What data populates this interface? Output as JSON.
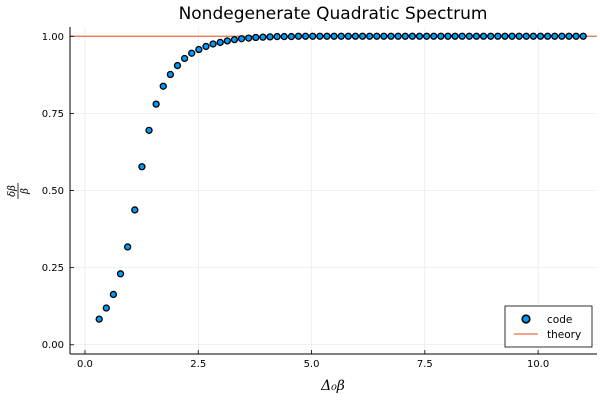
{
  "chart_data": {
    "type": "scatter",
    "title": "Nondegenerate Quadratic Spectrum",
    "xlabel": "Δ₀β",
    "ylabel": "δβ/β",
    "ylabel_numerator": "δβ",
    "ylabel_denominator": "β",
    "xlim": [
      -0.33,
      11.3
    ],
    "ylim": [
      -0.03,
      1.03
    ],
    "xticks": [
      0.0,
      2.5,
      5.0,
      7.5,
      10.0
    ],
    "xtick_labels": [
      "0.0",
      "2.5",
      "5.0",
      "7.5",
      "10.0"
    ],
    "yticks": [
      0.0,
      0.25,
      0.5,
      0.75,
      1.0
    ],
    "ytick_labels": [
      "0.00",
      "0.25",
      "0.50",
      "0.75",
      "1.00"
    ],
    "grid": true,
    "legend_position": "bottom-right",
    "series": [
      {
        "name": "code",
        "kind": "scatter",
        "color": "#009AFA",
        "x": [
          0.314,
          0.471,
          0.628,
          0.785,
          0.942,
          1.1,
          1.257,
          1.414,
          1.571,
          1.728,
          1.885,
          2.042,
          2.199,
          2.356,
          2.513,
          2.67,
          2.827,
          2.985,
          3.142,
          3.299,
          3.456,
          3.613,
          3.77,
          3.927,
          4.084,
          4.241,
          4.398,
          4.555,
          4.712,
          4.869,
          5.027,
          5.184,
          5.341,
          5.498,
          5.655,
          5.812,
          5.969,
          6.126,
          6.283,
          6.44,
          6.597,
          6.754,
          6.912,
          7.069,
          7.226,
          7.383,
          7.54,
          7.697,
          7.854,
          8.011,
          8.168,
          8.325,
          8.482,
          8.639,
          8.796,
          8.954,
          9.111,
          9.268,
          9.425,
          9.582,
          9.739,
          9.896,
          10.053,
          10.21,
          10.367,
          10.524,
          10.681,
          10.838,
          10.996
        ],
        "y": [
          0.083,
          0.119,
          0.163,
          0.23,
          0.317,
          0.437,
          0.577,
          0.695,
          0.78,
          0.838,
          0.876,
          0.905,
          0.928,
          0.945,
          0.957,
          0.967,
          0.975,
          0.98,
          0.985,
          0.989,
          0.992,
          0.994,
          0.996,
          0.997,
          0.998,
          0.999,
          0.999,
          0.999,
          1.0,
          1.0,
          1.0,
          1.0,
          1.0,
          1.0,
          1.0,
          1.0,
          1.0,
          1.0,
          1.0,
          1.0,
          1.0,
          1.0,
          1.0,
          1.0,
          1.0,
          1.0,
          1.0,
          1.0,
          1.0,
          1.0,
          1.0,
          1.0,
          1.0,
          1.0,
          1.0,
          1.0,
          1.0,
          1.0,
          1.0,
          1.0,
          1.0,
          1.0,
          1.0,
          1.0,
          1.0,
          1.0,
          1.0,
          1.0,
          1.0
        ]
      },
      {
        "name": "theory",
        "kind": "hline",
        "color": "#E26F46",
        "value": 1.0
      }
    ]
  }
}
